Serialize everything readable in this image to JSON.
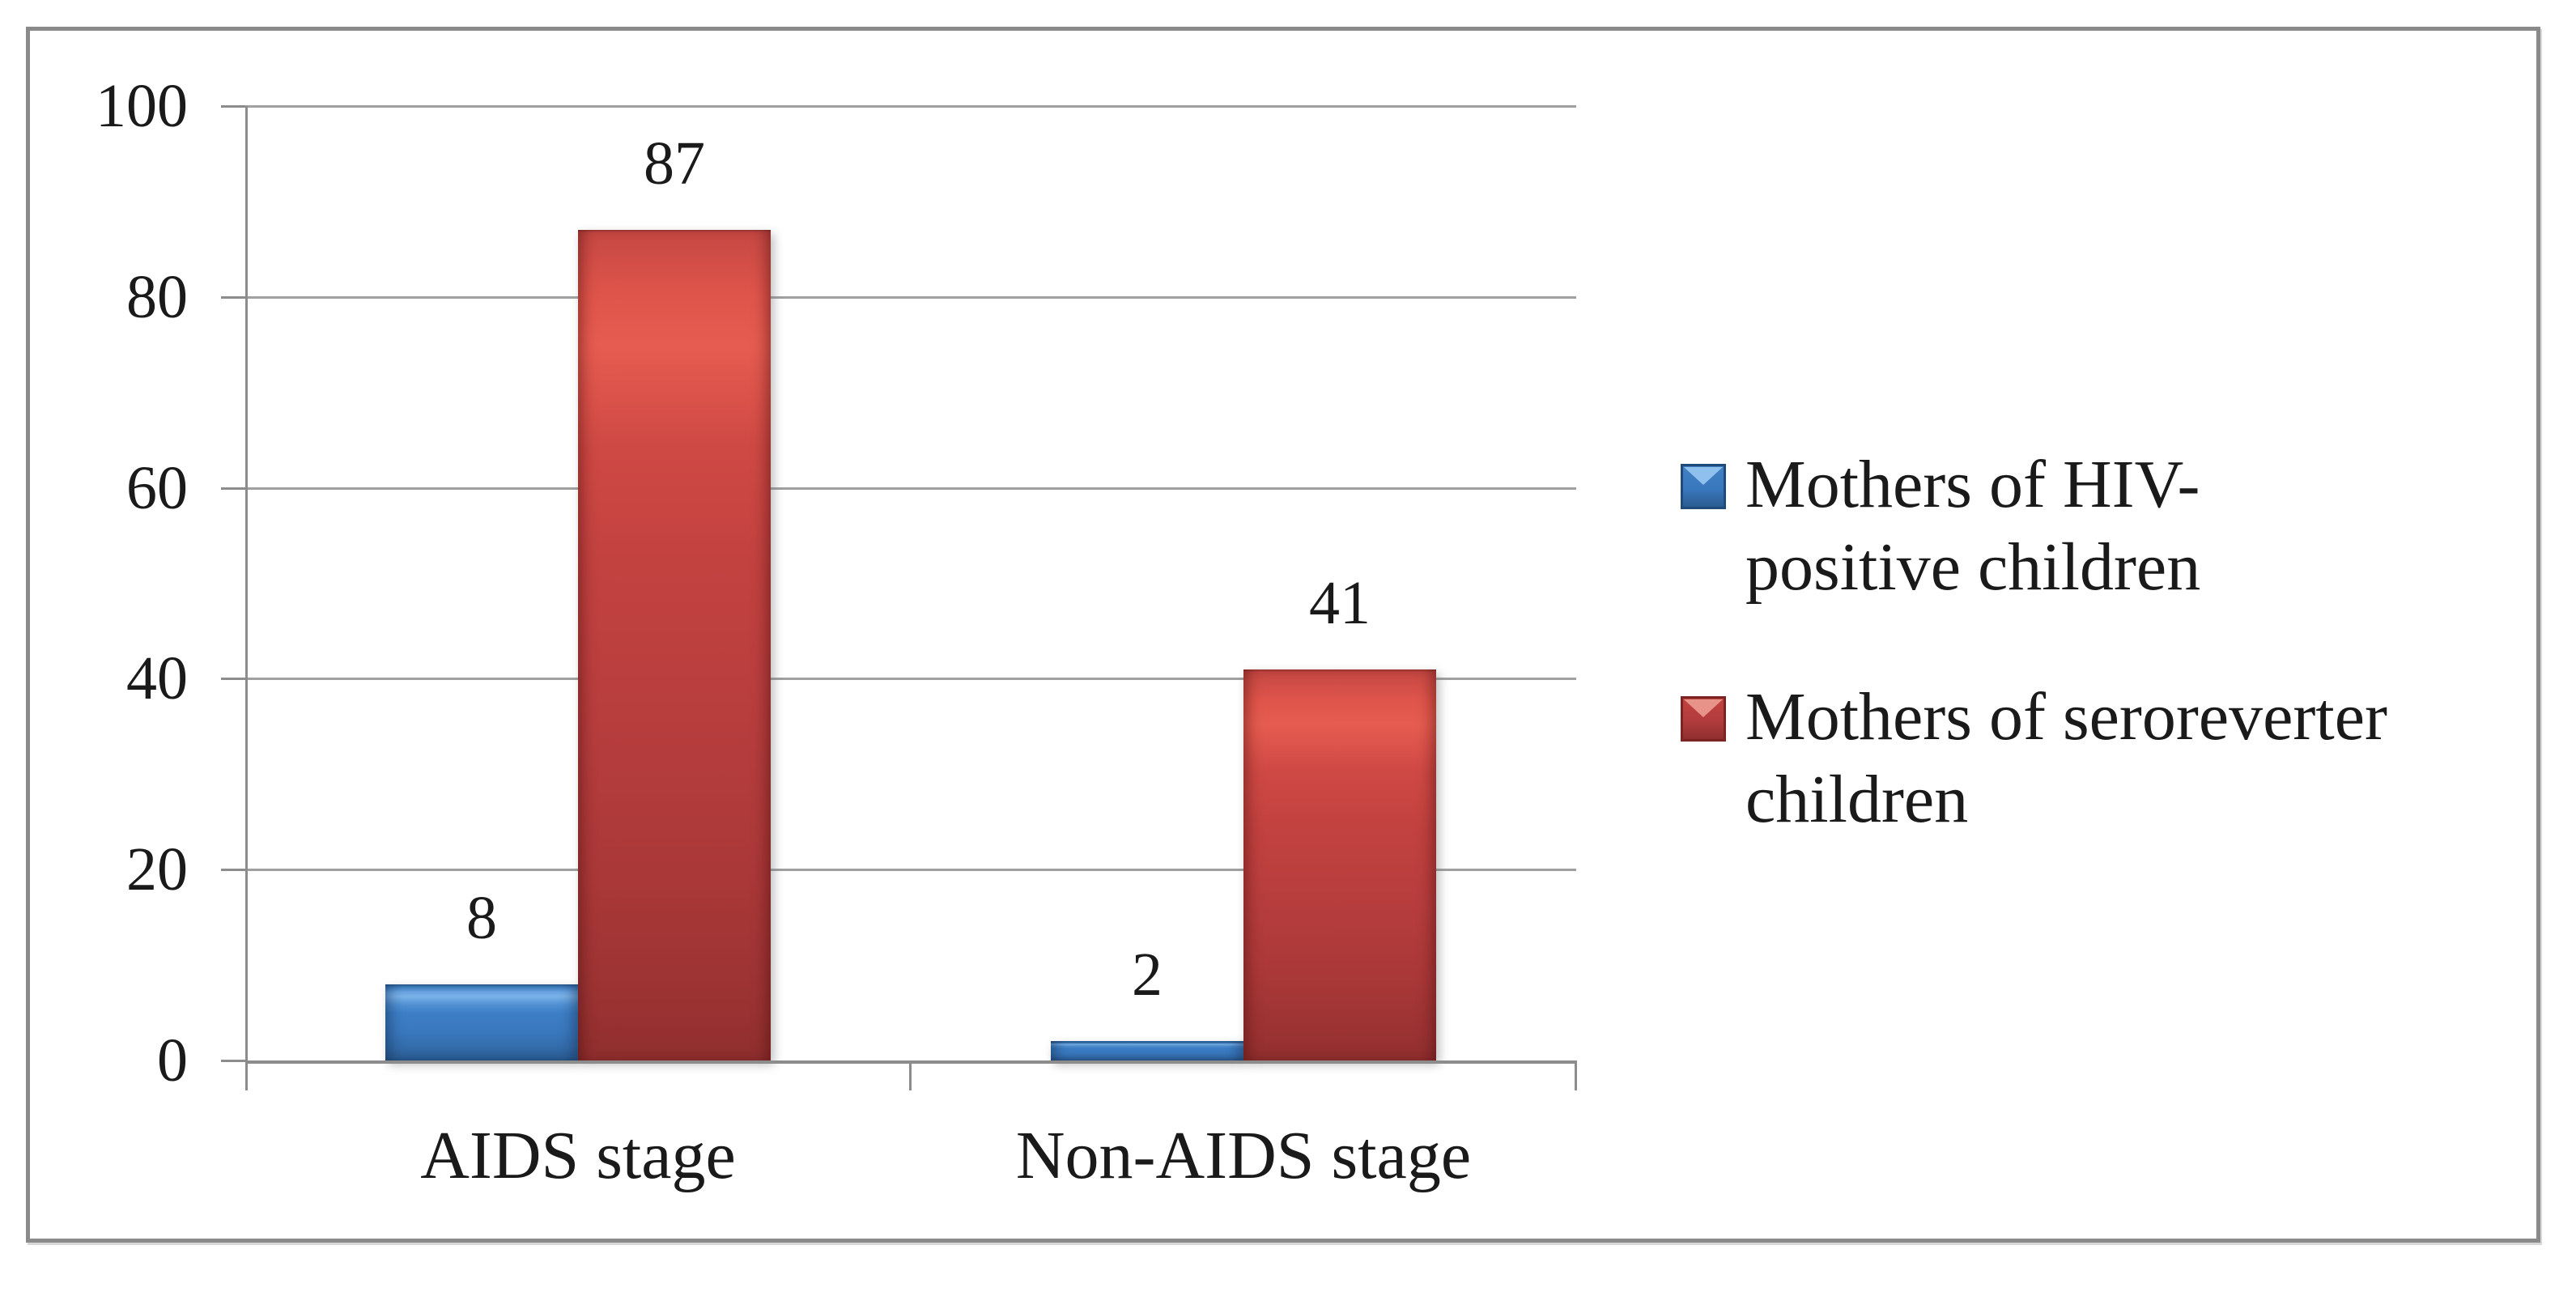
{
  "figure": {
    "type": "clustered-column-chart-figure",
    "colors": {
      "series_blue": "#3a78bd",
      "series_red": "#b73d3d",
      "gridline": "#a0a0a0",
      "axis": "#8c8c8c",
      "frame_border": "#8a8a8a",
      "text": "#1a1a1a",
      "background": "#ffffff"
    }
  },
  "chart_data": {
    "type": "bar",
    "title": "",
    "xlabel": "",
    "ylabel": "",
    "categories": [
      "AIDS stage",
      "Non-AIDS stage"
    ],
    "series": [
      {
        "name": "Mothers of HIV-positive children",
        "color": "#3a78bd",
        "values": [
          8,
          2
        ]
      },
      {
        "name": "Mothers of seroreverter children",
        "color": "#b73d3d",
        "values": [
          87,
          41
        ]
      }
    ],
    "data_labels": [
      {
        "series": "Mothers of HIV-positive children",
        "labels": [
          "8",
          "2"
        ]
      },
      {
        "series": "Mothers of seroreverter children",
        "labels": [
          "87",
          "41"
        ]
      }
    ],
    "ylim": [
      0,
      100
    ],
    "yticks": [
      "0",
      "20",
      "40",
      "60",
      "80",
      "100"
    ],
    "grid": true,
    "legend_position": "right"
  }
}
